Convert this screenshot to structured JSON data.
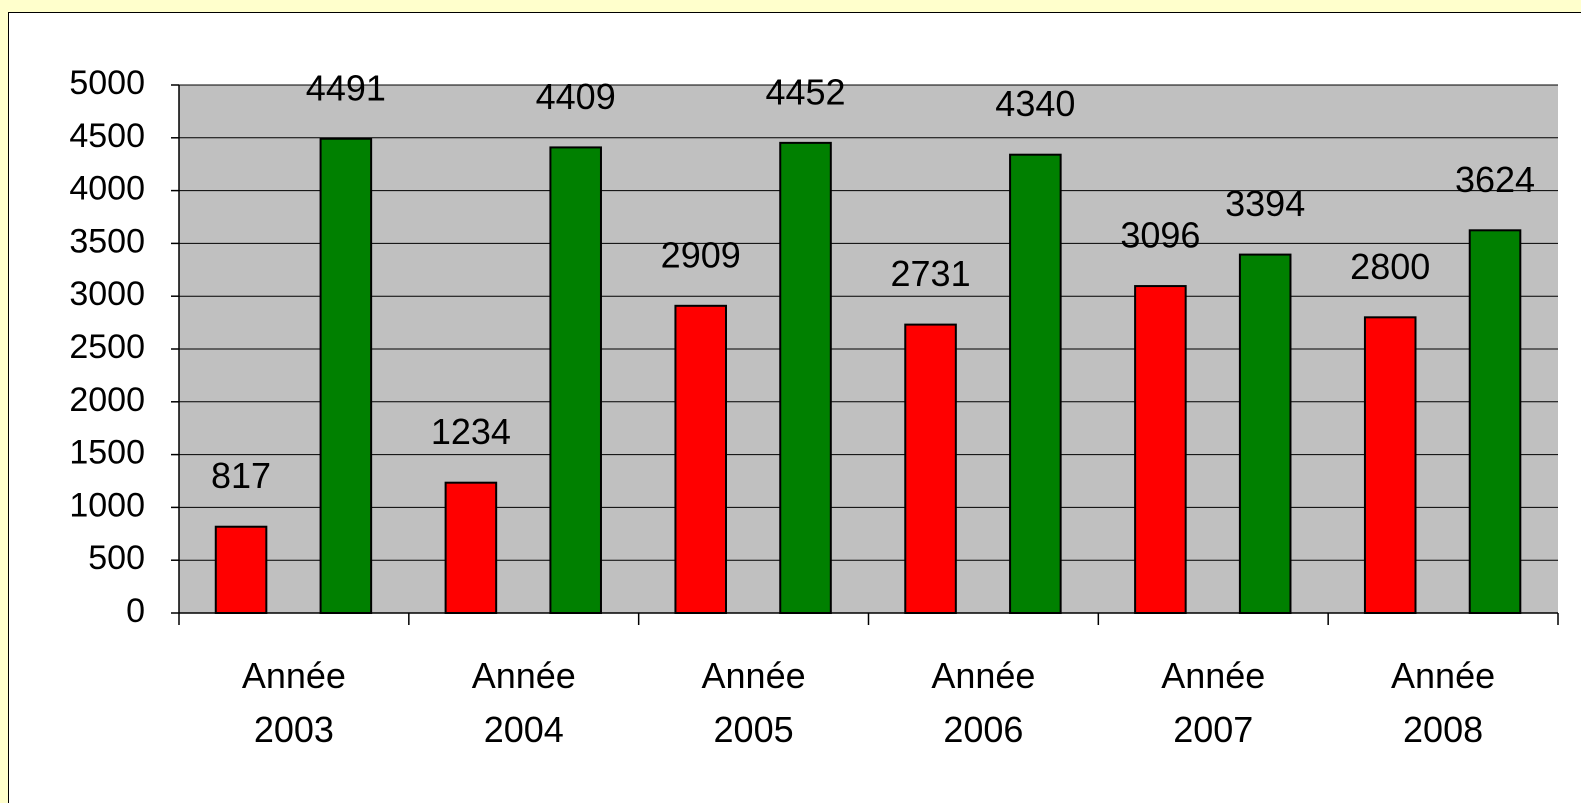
{
  "chart_data": {
    "type": "bar",
    "categories": [
      "Année 2003",
      "Année 2004",
      "Année 2005",
      "Année 2006",
      "Année 2007",
      "Année 2008"
    ],
    "series": [
      {
        "color": "#ff0000",
        "values": [
          817,
          1234,
          2909,
          2731,
          3096,
          2800
        ]
      },
      {
        "color": "#008000",
        "values": [
          4491,
          4409,
          4452,
          4340,
          3394,
          3624
        ]
      }
    ],
    "ylim": [
      0,
      5000
    ],
    "yticks": [
      0,
      500,
      1000,
      1500,
      2000,
      2500,
      3000,
      3500,
      4000,
      4500,
      5000
    ],
    "grid": true,
    "plot_background": "#c0c0c0"
  }
}
